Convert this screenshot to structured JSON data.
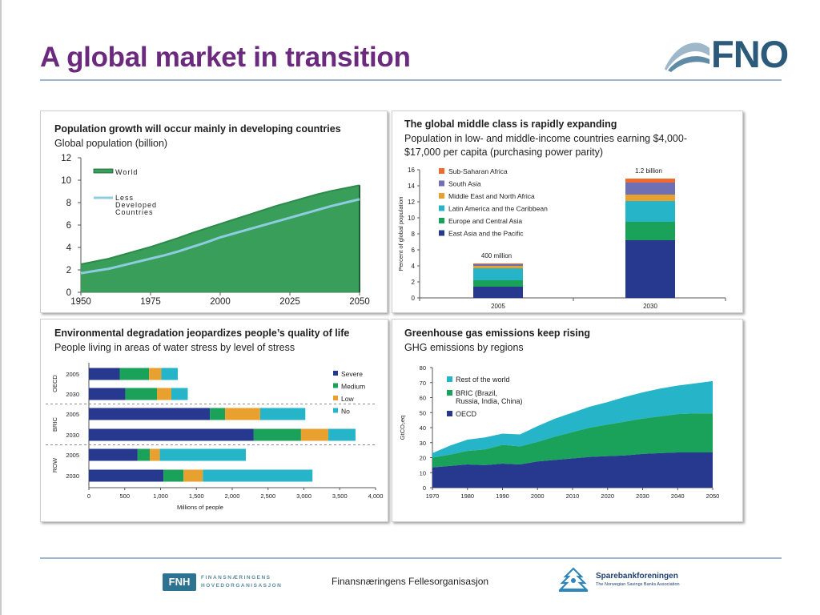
{
  "slide": {
    "title": "A global market in transition",
    "logo_text": "FNO"
  },
  "footer": {
    "fnh_box": "FNH",
    "fnh_line1": "FINANSNÆRINGENS",
    "fnh_line2": "HOVEDORGANISASJON",
    "center_text": "Finansnæringens Fellesorganisasjon",
    "spb_name": "Sparebankforeningen",
    "spb_sub": "The Norwegian Savings Banks Association"
  },
  "colors": {
    "title": "#6b2a7d",
    "world_area": "#3a9e5b",
    "ldc_line": "#8ecde0",
    "navy": "#27388f",
    "green": "#1aa15a",
    "teal": "#25b4c8",
    "orange": "#e8a02e",
    "purple": "#6f6fb3",
    "red_orange": "#ee6a2f"
  },
  "chart_data": [
    {
      "type": "area",
      "title": "Population growth will occur mainly in developing countries",
      "subtitle": "Global population (billion)",
      "x": [
        1950,
        1955,
        1960,
        1965,
        1970,
        1975,
        1980,
        1985,
        1990,
        1995,
        2000,
        2005,
        2010,
        2015,
        2020,
        2025,
        2030,
        2035,
        2040,
        2045,
        2050
      ],
      "series": [
        {
          "name": "World",
          "values": [
            2.5,
            2.75,
            3.0,
            3.35,
            3.7,
            4.05,
            4.45,
            4.85,
            5.3,
            5.7,
            6.1,
            6.5,
            6.9,
            7.3,
            7.7,
            8.05,
            8.4,
            8.75,
            9.05,
            9.3,
            9.55
          ]
        },
        {
          "name": "Less Developed Countries",
          "values": [
            1.7,
            1.9,
            2.1,
            2.4,
            2.7,
            3.0,
            3.3,
            3.65,
            4.05,
            4.45,
            4.9,
            5.25,
            5.6,
            5.95,
            6.3,
            6.65,
            7.0,
            7.35,
            7.7,
            8.0,
            8.3
          ]
        }
      ],
      "ylim": [
        0,
        12
      ],
      "yticks": [
        "0",
        "2",
        "4",
        "6",
        "8",
        "10",
        "12"
      ],
      "xticks": [
        "1950",
        "1975",
        "2000",
        "2025",
        "2050"
      ],
      "legend": [
        "World",
        "Less",
        "Developed",
        "Countries"
      ]
    },
    {
      "type": "bar",
      "stacked": true,
      "title": "The global middle class is rapidly expanding",
      "subtitle_line1": "Population in low- and middle-income countries earning $4,000-",
      "subtitle_line2": "$17,000 per capita (purchasing power parity)",
      "ylabel": "Percent of global population",
      "categories": [
        "2005",
        "2030"
      ],
      "annotations": [
        "400 million",
        "1.2 billion"
      ],
      "yticks": [
        "0",
        "2",
        "4",
        "6",
        "8",
        "10",
        "12",
        "14",
        "16"
      ],
      "ylim": [
        0,
        16
      ],
      "series": [
        {
          "name": "East Asia and the Pacific",
          "values": [
            1.4,
            7.2
          ]
        },
        {
          "name": "Europe and Central Asia",
          "values": [
            0.8,
            2.3
          ]
        },
        {
          "name": "Latin America and the Caribbean",
          "values": [
            1.5,
            2.6
          ]
        },
        {
          "name": "Middle East and North Africa",
          "values": [
            0.3,
            0.8
          ]
        },
        {
          "name": "South Asia",
          "values": [
            0.2,
            1.5
          ]
        },
        {
          "name": "Sub-Saharan Africa",
          "values": [
            0.1,
            0.5
          ]
        }
      ]
    },
    {
      "type": "bar",
      "orientation": "horizontal",
      "stacked": true,
      "title": "Environmental degradation jeopardizes people’s quality of life",
      "subtitle": "People living in areas of water stress by level of stress",
      "xlabel": "Millions of people",
      "xlim": [
        0,
        4000
      ],
      "xticks": [
        "0",
        "500",
        "1,000",
        "1,500",
        "2,000",
        "2,500",
        "3,000",
        "3,500",
        "4,000"
      ],
      "groups": [
        "OECD",
        "BRIC",
        "ROW"
      ],
      "categories": [
        "2005",
        "2030",
        "2005",
        "2030",
        "2005",
        "2030"
      ],
      "series": [
        {
          "name": "Severe",
          "values": [
            430,
            510,
            1690,
            2300,
            680,
            1040
          ]
        },
        {
          "name": "Medium",
          "values": [
            410,
            440,
            210,
            660,
            170,
            280
          ]
        },
        {
          "name": "Low",
          "values": [
            170,
            200,
            490,
            380,
            140,
            270
          ]
        },
        {
          "name": "No",
          "values": [
            230,
            230,
            630,
            380,
            1200,
            1530
          ]
        }
      ]
    },
    {
      "type": "area",
      "stacked": true,
      "title": "Greenhouse gas emissions keep rising",
      "subtitle": "GHG emissions by regions",
      "ylabel": "GtCO₂eq",
      "x": [
        1970,
        1975,
        1980,
        1985,
        1990,
        1995,
        2000,
        2005,
        2010,
        2015,
        2020,
        2025,
        2030,
        2035,
        2040,
        2045,
        2050
      ],
      "xticks": [
        "1970",
        "1980",
        "1990",
        "2000",
        "2010",
        "2020",
        "2030",
        "2040",
        "2050"
      ],
      "yticks": [
        "0",
        "10",
        "20",
        "30",
        "40",
        "50",
        "60",
        "70",
        "80"
      ],
      "ylim": [
        0,
        80
      ],
      "series": [
        {
          "name": "OECD",
          "values": [
            13.5,
            14.5,
            15.5,
            15,
            16,
            15.5,
            17.5,
            18.5,
            19.5,
            20.5,
            21,
            21.5,
            22.5,
            23,
            23.5,
            23.5,
            23.5
          ]
        },
        {
          "name": "BRIC (Brazil, Russia, India, China)",
          "values": [
            6.5,
            7.5,
            9,
            10.5,
            12.5,
            12,
            13,
            15.5,
            17.5,
            19.5,
            21,
            22.5,
            23.5,
            24.5,
            25.5,
            26,
            26
          ]
        },
        {
          "name": "Rest of the world",
          "values": [
            3,
            6,
            7.5,
            8,
            7.5,
            8,
            10.5,
            12,
            13,
            14,
            15,
            16.5,
            17.5,
            18.5,
            19,
            20,
            21.5
          ]
        }
      ],
      "legend": [
        "Rest of the world",
        "BRIC (Brazil,",
        "Russia, India, China)",
        "OECD"
      ]
    }
  ]
}
